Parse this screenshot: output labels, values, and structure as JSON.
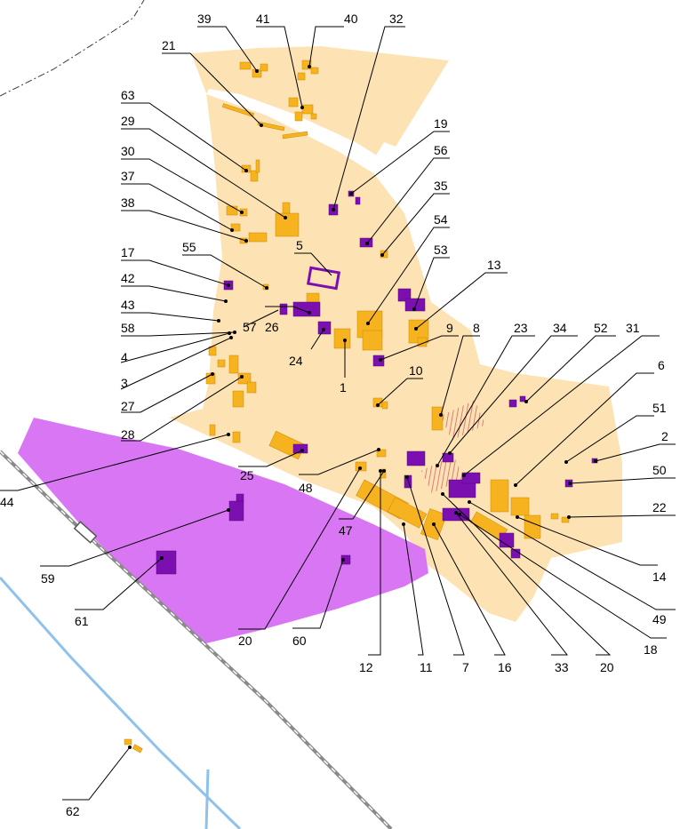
{
  "colors": {
    "background": "#ffffff",
    "zone": "#fde3b4",
    "building": "#f6b21f",
    "building_outline": "#c98a00",
    "heritage": "#7b0fb0",
    "industrial_zone": "#d976f4",
    "railway": "#8a8a8a",
    "river": "#8ec2ec",
    "boundary": "#3a3a3a",
    "hatch": "#e07a7a",
    "leader": "#000000"
  },
  "map": {
    "labels": [
      {
        "id": "l39",
        "text": "39"
      },
      {
        "id": "l41",
        "text": "41"
      },
      {
        "id": "l40",
        "text": "40"
      },
      {
        "id": "l32",
        "text": "32"
      },
      {
        "id": "l21",
        "text": "21"
      },
      {
        "id": "l19",
        "text": "19"
      },
      {
        "id": "l63",
        "text": "63"
      },
      {
        "id": "l56",
        "text": "56"
      },
      {
        "id": "l29",
        "text": "29"
      },
      {
        "id": "l35",
        "text": "35"
      },
      {
        "id": "l30",
        "text": "30"
      },
      {
        "id": "l54",
        "text": "54"
      },
      {
        "id": "l37",
        "text": "37"
      },
      {
        "id": "l53",
        "text": "53"
      },
      {
        "id": "l38",
        "text": "38"
      },
      {
        "id": "l5",
        "text": "5"
      },
      {
        "id": "l13",
        "text": "13"
      },
      {
        "id": "l17",
        "text": "17"
      },
      {
        "id": "l55",
        "text": "55"
      },
      {
        "id": "l42",
        "text": "42"
      },
      {
        "id": "l43",
        "text": "43"
      },
      {
        "id": "l57",
        "text": "57"
      },
      {
        "id": "l58",
        "text": "58"
      },
      {
        "id": "l26",
        "text": "26"
      },
      {
        "id": "l8",
        "text": "8"
      },
      {
        "id": "l23",
        "text": "23"
      },
      {
        "id": "l34",
        "text": "34"
      },
      {
        "id": "l52",
        "text": "52"
      },
      {
        "id": "l31",
        "text": "31"
      },
      {
        "id": "l9",
        "text": "9"
      },
      {
        "id": "l4",
        "text": "4"
      },
      {
        "id": "l24",
        "text": "24"
      },
      {
        "id": "l1",
        "text": "1"
      },
      {
        "id": "l6",
        "text": "6"
      },
      {
        "id": "l3",
        "text": "3"
      },
      {
        "id": "l10",
        "text": "10"
      },
      {
        "id": "l27",
        "text": "27"
      },
      {
        "id": "l51",
        "text": "51"
      },
      {
        "id": "l28",
        "text": "28"
      },
      {
        "id": "l2",
        "text": "2"
      },
      {
        "id": "l25",
        "text": "25"
      },
      {
        "id": "l50",
        "text": "50"
      },
      {
        "id": "l48",
        "text": "48"
      },
      {
        "id": "l44",
        "text": "44"
      },
      {
        "id": "l22",
        "text": "22"
      },
      {
        "id": "l47",
        "text": "47"
      },
      {
        "id": "l59",
        "text": "59"
      },
      {
        "id": "l14",
        "text": "14"
      },
      {
        "id": "l61",
        "text": "61"
      },
      {
        "id": "l49",
        "text": "49"
      },
      {
        "id": "l18",
        "text": "18"
      },
      {
        "id": "l20a",
        "text": "20"
      },
      {
        "id": "l60",
        "text": "60"
      },
      {
        "id": "l12",
        "text": "12"
      },
      {
        "id": "l11",
        "text": "11"
      },
      {
        "id": "l7",
        "text": "7"
      },
      {
        "id": "l16",
        "text": "16"
      },
      {
        "id": "l33",
        "text": "33"
      },
      {
        "id": "l20b",
        "text": "20"
      },
      {
        "id": "l62",
        "text": "62"
      }
    ]
  }
}
